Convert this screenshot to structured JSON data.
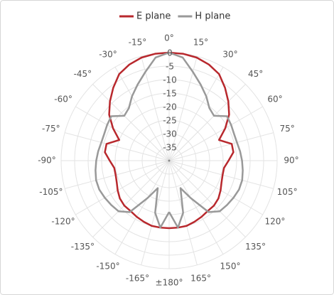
{
  "chart_data": {
    "type": "polar",
    "theta": [
      -180,
      -172.5,
      -165,
      -157.5,
      -150,
      -142.5,
      -135,
      -127.5,
      -120,
      -112.5,
      -105,
      -97.5,
      -90,
      -82.5,
      -75,
      -67.5,
      -60,
      -52.5,
      -45,
      -37.5,
      -30,
      -22.5,
      -15,
      -7.5,
      0,
      7.5,
      15,
      22.5,
      30,
      37.5,
      45,
      52.5,
      60,
      67.5,
      75,
      82.5,
      90,
      97.5,
      105,
      112.5,
      120,
      127.5,
      135,
      142.5,
      150,
      157.5,
      165,
      172.5,
      180
    ],
    "series": [
      {
        "name": "E plane",
        "color": "#b8282d",
        "values": [
          -15,
          -15,
          -15,
          -15.5,
          -16,
          -16.5,
          -16.5,
          -17,
          -18,
          -19,
          -19.5,
          -19.5,
          -18,
          -16,
          -16,
          -20,
          -16,
          -12,
          -9,
          -6,
          -3,
          -1.5,
          -0.5,
          -0.1,
          0,
          -0.1,
          -0.5,
          -1.5,
          -3,
          -6,
          -9,
          -12,
          -16,
          -20,
          -16,
          -16,
          -18,
          -19.5,
          -19.5,
          -19,
          -18,
          -17,
          -16.5,
          -16.5,
          -16,
          -15.5,
          -15,
          -15,
          -15
        ]
      },
      {
        "name": "H plane",
        "color": "#999999",
        "values": [
          -21,
          -15,
          -20,
          -29,
          -24,
          -16,
          -13.5,
          -13,
          -12.5,
          -12,
          -12,
          -12.5,
          -13,
          -13.5,
          -14,
          -14,
          -13.5,
          -13,
          -16.5,
          -15.5,
          -12.5,
          -9.5,
          -6,
          -1.5,
          0,
          -1.5,
          -6,
          -9.5,
          -12.5,
          -15.5,
          -16.5,
          -13,
          -13.5,
          -14,
          -14,
          -13.5,
          -13,
          -12.5,
          -12,
          -12,
          -12.5,
          -13,
          -13.5,
          -16,
          -24,
          -29,
          -20,
          -15,
          -21
        ]
      }
    ],
    "rlim": [
      -40,
      0
    ],
    "rticks": [
      0,
      -5,
      -10,
      -15,
      -20,
      -25,
      -30,
      -35
    ],
    "thetaticks": [
      {
        "value": 0,
        "label": "0°"
      },
      {
        "value": 15,
        "label": "15°"
      },
      {
        "value": 30,
        "label": "30°"
      },
      {
        "value": 45,
        "label": "45°"
      },
      {
        "value": 60,
        "label": "60°"
      },
      {
        "value": 75,
        "label": "75°"
      },
      {
        "value": 90,
        "label": "90°"
      },
      {
        "value": 105,
        "label": "105°"
      },
      {
        "value": 120,
        "label": "120°"
      },
      {
        "value": 135,
        "label": "135°"
      },
      {
        "value": 150,
        "label": "150°"
      },
      {
        "value": 165,
        "label": "165°"
      },
      {
        "value": 180,
        "label": "±180°"
      },
      {
        "value": -165,
        "label": "-165°"
      },
      {
        "value": -150,
        "label": "-150°"
      },
      {
        "value": -135,
        "label": "-135°"
      },
      {
        "value": -120,
        "label": "-120°"
      },
      {
        "value": -105,
        "label": "-105°"
      },
      {
        "value": -90,
        "label": "-90°"
      },
      {
        "value": -75,
        "label": "-75°"
      },
      {
        "value": -60,
        "label": "-60°"
      },
      {
        "value": -45,
        "label": "-45°"
      },
      {
        "value": -30,
        "label": "-30°"
      },
      {
        "value": -15,
        "label": "-15°"
      }
    ],
    "grid": true,
    "legend": "top"
  }
}
